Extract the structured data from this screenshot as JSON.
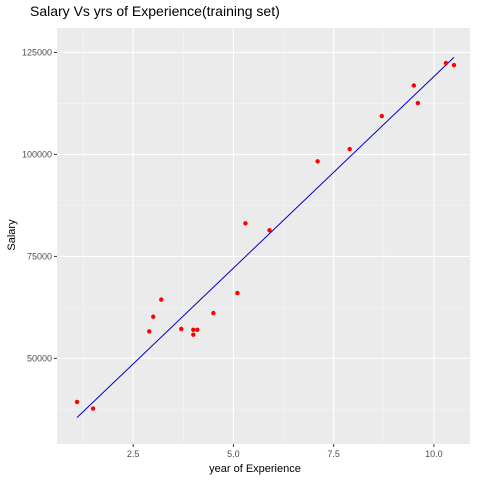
{
  "chart_data": {
    "type": "scatter",
    "title": "Salary Vs yrs of Experience(training set)",
    "xlabel": "year of Experience",
    "ylabel": "Salary",
    "xlim": [
      0.6,
      10.9
    ],
    "ylim": [
      29000,
      131000
    ],
    "x_ticks": [
      2.5,
      5.0,
      7.5,
      10.0
    ],
    "x_tick_labels": [
      "2.5",
      "5.0",
      "7.5",
      "10.0"
    ],
    "y_ticks": [
      50000,
      75000,
      100000,
      125000
    ],
    "y_tick_labels": [
      "50000",
      "75000",
      "100000",
      "125000"
    ],
    "grid": true,
    "series": [
      {
        "kind": "points",
        "color": "#ff0000",
        "x": [
          1.1,
          1.5,
          2.9,
          3.0,
          3.2,
          3.7,
          4.0,
          4.0,
          4.1,
          4.5,
          5.1,
          5.3,
          5.9,
          7.1,
          7.9,
          8.7,
          9.5,
          9.6,
          10.3,
          10.5
        ],
        "y": [
          39300,
          37700,
          56600,
          60200,
          64400,
          57200,
          55800,
          57000,
          57000,
          61100,
          66000,
          83100,
          81400,
          98300,
          101300,
          109400,
          116900,
          112600,
          122400,
          121900
        ]
      },
      {
        "kind": "line",
        "color": "#0000cc",
        "x": [
          1.1,
          10.5
        ],
        "y": [
          35500,
          123800
        ]
      }
    ]
  }
}
